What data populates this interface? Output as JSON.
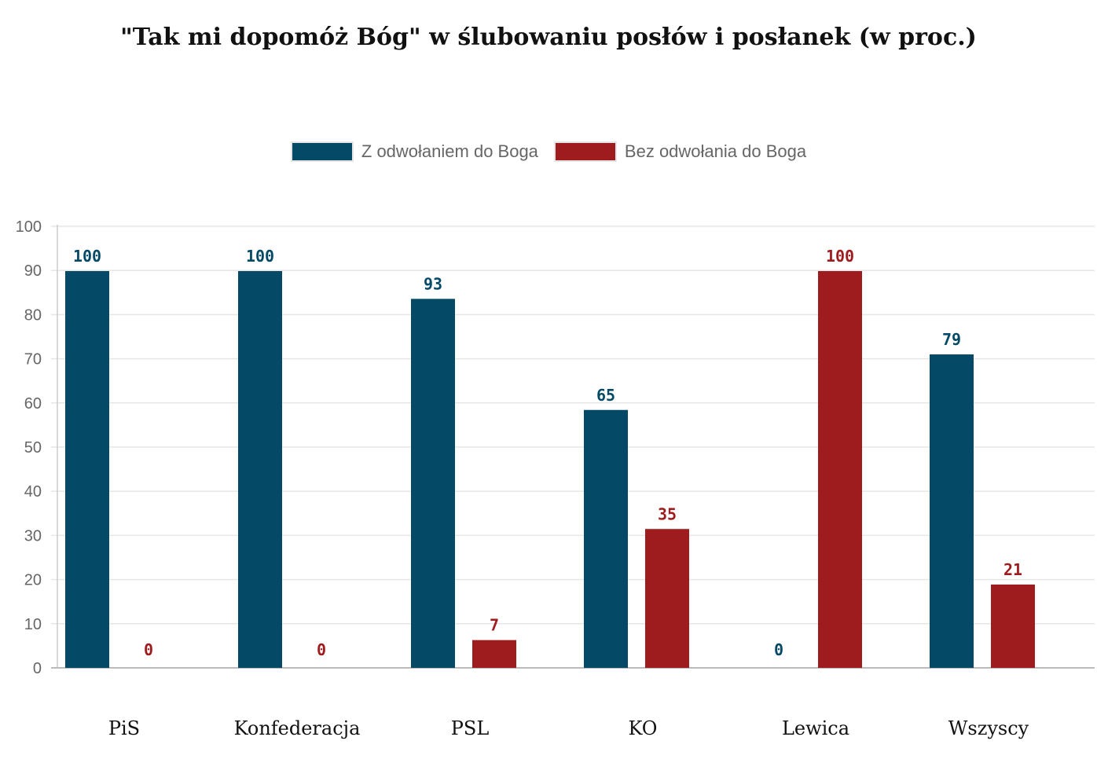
{
  "chart_data": {
    "type": "bar",
    "title": "\"Tak mi dopomóż Bóg\" w ślubowaniu posłów i posłanek (w proc.)",
    "categories": [
      "PiS",
      "Konfederacja",
      "PSL",
      "KO",
      "Lewica",
      "Wszyscy"
    ],
    "series": [
      {
        "name": "Z odwołaniem do Boga",
        "color": "#044a66",
        "values": [
          100,
          100,
          93,
          65,
          0,
          79
        ]
      },
      {
        "name": "Bez odwołania do Boga",
        "color": "#9e1b1e",
        "values": [
          0,
          0,
          7,
          35,
          100,
          21
        ]
      }
    ],
    "yticks": [
      "0",
      "10",
      "20",
      "30",
      "40",
      "50",
      "60",
      "70",
      "80",
      "90",
      "100"
    ],
    "ylim": [
      0,
      100
    ],
    "grid": true,
    "legend_position": "top"
  }
}
